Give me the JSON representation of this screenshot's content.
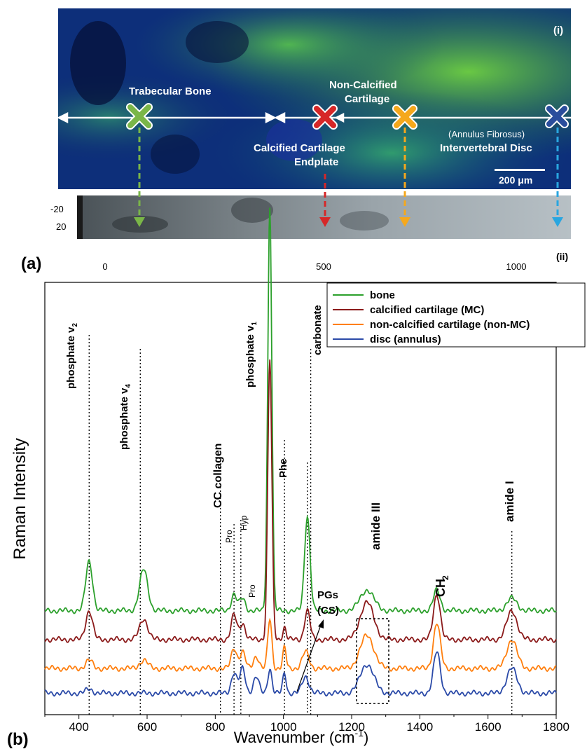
{
  "panel_a": {
    "label": "(a)",
    "micrograph_tag": "(i)",
    "strip_tag": "(ii)",
    "scale_bar": "200 μm",
    "regions": {
      "bone": "Trabecular Bone",
      "noncal_line1": "Non-Calcified",
      "noncal_line2": "Cartilage",
      "cc_line1": "Calcified Cartilage",
      "cc_line2": "Endplate",
      "disc_line1": "(Annulus Fibrosus)",
      "disc_line2": "Intervertebral Disc"
    },
    "strip_yticks": [
      "-20",
      "20"
    ],
    "strip_xticks": [
      "0",
      "500",
      "1000"
    ],
    "marker_colors": {
      "bone": "#7ab648",
      "calcified": "#d62728",
      "noncalcified": "#f5a81c",
      "disc": "#2a4d9c"
    }
  },
  "panel_b": {
    "label": "(b)",
    "peaks": {
      "p_v2_main": "phosphate v",
      "p_v2_sub": "2",
      "p_v4_main": "phosphate v",
      "p_v4_sub": "4",
      "p_v1_main": "phosphate v",
      "p_v1_sub": "1",
      "carbonate": "carbonate",
      "cc_collagen": "CC collagen",
      "pro": "Pro",
      "hyp": "Hyp",
      "pro2": "Pro",
      "phe": "Phe",
      "pgs_line1": "PGs",
      "pgs_line2": "(CS)",
      "amide3": "amide III",
      "ch2_main": "CH",
      "ch2_sub": "2",
      "amide1": "amide I"
    }
  },
  "chart_data": {
    "type": "line",
    "ylabel": "Raman Intensity",
    "xlabel_main": "Wavenumber (cm",
    "xlabel_sup": "-1",
    "xlabel_end": ")",
    "xlim": [
      300,
      1800
    ],
    "xticks": [
      400,
      600,
      800,
      1000,
      1200,
      1400,
      1600,
      1800
    ],
    "legend_position": "top-right",
    "peak_markers": [
      430,
      580,
      815,
      855,
      875,
      1003,
      1070,
      1080,
      1670
    ],
    "series": [
      {
        "name": "bone",
        "color": "#2ca02c",
        "baseline": 0.23,
        "peaks": [
          [
            430,
            0.12,
            10
          ],
          [
            590,
            0.1,
            12
          ],
          [
            855,
            0.04,
            8
          ],
          [
            880,
            0.03,
            8
          ],
          [
            960,
            0.98,
            6
          ],
          [
            1070,
            0.23,
            8
          ],
          [
            1245,
            0.05,
            20
          ],
          [
            1450,
            0.05,
            10
          ],
          [
            1670,
            0.03,
            15
          ]
        ]
      },
      {
        "name": "calcified cartilage (MC)",
        "color": "#8b1a1a",
        "baseline": 0.16,
        "peaks": [
          [
            430,
            0.07,
            10
          ],
          [
            590,
            0.05,
            12
          ],
          [
            855,
            0.06,
            8
          ],
          [
            880,
            0.04,
            8
          ],
          [
            960,
            0.68,
            6
          ],
          [
            1003,
            0.03,
            5
          ],
          [
            1070,
            0.07,
            8
          ],
          [
            1245,
            0.09,
            20
          ],
          [
            1450,
            0.11,
            10
          ],
          [
            1670,
            0.07,
            15
          ]
        ]
      },
      {
        "name": "non-calcified cartilage (non-MC)",
        "color": "#ff7f0e",
        "baseline": 0.09,
        "peaks": [
          [
            430,
            0.02,
            10
          ],
          [
            590,
            0.02,
            12
          ],
          [
            855,
            0.05,
            8
          ],
          [
            880,
            0.04,
            8
          ],
          [
            920,
            0.03,
            8
          ],
          [
            960,
            0.12,
            6
          ],
          [
            1003,
            0.05,
            5
          ],
          [
            1065,
            0.04,
            10
          ],
          [
            1245,
            0.08,
            20
          ],
          [
            1450,
            0.11,
            10
          ],
          [
            1670,
            0.07,
            15
          ]
        ]
      },
      {
        "name": "disc (annulus)",
        "color": "#2b4aa8",
        "baseline": 0.03,
        "peaks": [
          [
            430,
            0.01,
            10
          ],
          [
            855,
            0.05,
            8
          ],
          [
            880,
            0.06,
            8
          ],
          [
            920,
            0.04,
            8
          ],
          [
            960,
            0.06,
            6
          ],
          [
            1003,
            0.05,
            5
          ],
          [
            1065,
            0.04,
            10
          ],
          [
            1245,
            0.07,
            20
          ],
          [
            1450,
            0.1,
            10
          ],
          [
            1670,
            0.06,
            15
          ]
        ]
      }
    ]
  }
}
